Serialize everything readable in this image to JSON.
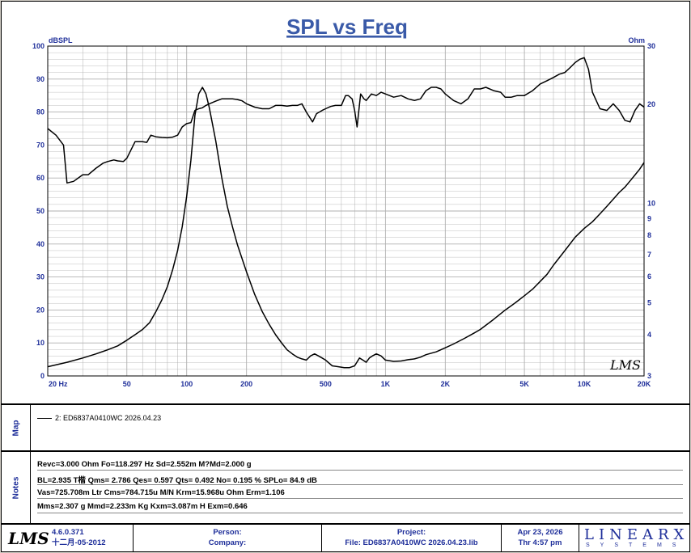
{
  "chart_data": {
    "type": "line",
    "title": "SPL vs Freq",
    "left_axis": {
      "unit": "dBSPL",
      "ylim": [
        0,
        100
      ],
      "ticks": [
        "0",
        "10",
        "20",
        "30",
        "40",
        "50",
        "60",
        "70",
        "80",
        "90",
        "100"
      ]
    },
    "right_axis": {
      "unit": "Ohm",
      "scale": "log",
      "ylim": [
        3,
        30
      ],
      "ticks": [
        "3",
        "4",
        "5",
        "6",
        "7",
        "8",
        "9",
        "10",
        "20",
        "30"
      ]
    },
    "x_axis": {
      "scale": "log",
      "xlim": [
        20,
        20000
      ],
      "ticks": [
        "20 Hz",
        "50",
        "100",
        "200",
        "500",
        "1K",
        "2K",
        "5K",
        "10K",
        "20K"
      ],
      "tick_values": [
        20,
        50,
        100,
        200,
        500,
        1000,
        2000,
        5000,
        10000,
        20000
      ]
    },
    "grid": true,
    "series": [
      {
        "axis": "left",
        "kind": "SPL",
        "x": [
          20,
          22,
          24,
          25,
          27,
          30,
          32,
          35,
          38,
          40,
          43,
          45,
          48,
          50,
          55,
          60,
          63,
          66,
          70,
          75,
          80,
          85,
          90,
          95,
          100,
          105,
          110,
          115,
          120,
          125,
          130,
          140,
          150,
          160,
          170,
          180,
          190,
          200,
          220,
          240,
          260,
          280,
          300,
          320,
          340,
          360,
          380,
          400,
          430,
          450,
          480,
          500,
          530,
          560,
          600,
          630,
          650,
          680,
          700,
          720,
          750,
          780,
          800,
          850,
          900,
          950,
          1000,
          1100,
          1200,
          1300,
          1400,
          1500,
          1600,
          1700,
          1800,
          1900,
          2000,
          2200,
          2400,
          2600,
          2800,
          3000,
          3200,
          3500,
          3800,
          4000,
          4300,
          4600,
          5000,
          5500,
          6000,
          6500,
          7000,
          7500,
          8000,
          8500,
          9000,
          9500,
          10000,
          10500,
          11000,
          12000,
          13000,
          14000,
          15000,
          16000,
          17000,
          18000,
          19000,
          20000
        ],
        "y": [
          75,
          73,
          70,
          58.5,
          59,
          61,
          61,
          63,
          64.5,
          65,
          65.5,
          65.2,
          65,
          66,
          71,
          71,
          70.8,
          73,
          72.5,
          72.3,
          72.2,
          72.4,
          73,
          75.5,
          76.5,
          76.8,
          80.5,
          81,
          81.3,
          82,
          82.5,
          83.3,
          84,
          84,
          84,
          83.8,
          83.4,
          82.5,
          81.5,
          81,
          81,
          82,
          82,
          81.8,
          82,
          82,
          82.5,
          80,
          77,
          79.5,
          80.5,
          81,
          81.7,
          82,
          82,
          85,
          85,
          84,
          80.5,
          75.5,
          85.5,
          84,
          83.5,
          85.5,
          85,
          86,
          85.5,
          84.5,
          85,
          84,
          83.5,
          84,
          86.5,
          87.5,
          87.5,
          87,
          85.5,
          83.5,
          82.5,
          84,
          87,
          87,
          87.5,
          86.5,
          86,
          84.5,
          84.5,
          85,
          85,
          86.5,
          88.5,
          89.5,
          90.5,
          91.5,
          92,
          93.5,
          95,
          96,
          96.5,
          93,
          86,
          81,
          80.5,
          82.5,
          80.5,
          77.5,
          77,
          80.5,
          82.5,
          81.5
        ]
      },
      {
        "axis": "right",
        "kind": "Impedance",
        "x": [
          20,
          25,
          30,
          35,
          40,
          45,
          50,
          55,
          60,
          65,
          70,
          75,
          80,
          85,
          90,
          95,
          100,
          105,
          110,
          115,
          120,
          125,
          130,
          140,
          150,
          160,
          170,
          180,
          190,
          200,
          220,
          240,
          260,
          280,
          300,
          320,
          340,
          360,
          380,
          400,
          420,
          440,
          460,
          480,
          500,
          540,
          580,
          620,
          660,
          700,
          740,
          770,
          800,
          830,
          860,
          900,
          950,
          1000,
          1100,
          1200,
          1300,
          1400,
          1500,
          1600,
          1800,
          2000,
          2200,
          2500,
          2800,
          3000,
          3500,
          4000,
          4500,
          5000,
          5500,
          6000,
          6500,
          7000,
          8000,
          9000,
          10000,
          11000,
          12000,
          13000,
          14000,
          15000,
          16000,
          17000,
          18000,
          19000,
          20000
        ],
        "y": [
          3.2,
          3.3,
          3.4,
          3.5,
          3.6,
          3.7,
          3.85,
          4.0,
          4.15,
          4.35,
          4.7,
          5.1,
          5.6,
          6.3,
          7.2,
          8.5,
          10.5,
          13.5,
          18.5,
          21.5,
          22.5,
          21.5,
          19.5,
          15.5,
          12,
          9.8,
          8.5,
          7.5,
          6.8,
          6.2,
          5.3,
          4.7,
          4.3,
          4.0,
          3.78,
          3.6,
          3.5,
          3.42,
          3.38,
          3.35,
          3.45,
          3.5,
          3.45,
          3.4,
          3.35,
          3.22,
          3.2,
          3.18,
          3.18,
          3.22,
          3.4,
          3.35,
          3.3,
          3.4,
          3.45,
          3.5,
          3.45,
          3.35,
          3.32,
          3.33,
          3.36,
          3.38,
          3.42,
          3.48,
          3.55,
          3.65,
          3.75,
          3.9,
          4.05,
          4.15,
          4.45,
          4.75,
          5.0,
          5.25,
          5.5,
          5.8,
          6.1,
          6.5,
          7.2,
          7.9,
          8.4,
          8.8,
          9.3,
          9.8,
          10.3,
          10.8,
          11.2,
          11.7,
          12.2,
          12.7,
          13.3
        ]
      }
    ]
  },
  "map": {
    "label": "Map",
    "legend_entry": "2: ED6837A0410WC 2026.04.23"
  },
  "notes": {
    "label": "Notes",
    "lines": [
      "Revc=3.000 Ohm  Fo=118.297 Hz  Sd=2.552m M?Md=2.000 g",
      "BL=2.935 T楷  Qms= 2.786  Qes= 0.597  Qts= 0.492  No= 0.195 %  SPLo= 84.9 dB",
      "Vas=725.708m Ltr  Cms=784.715u M/N  Krm=15.968u Ohm  Erm=1.106",
      "Mms=2.307 g  Mmd=2.233m Kg  Kxm=3.087m H  Exm=0.646"
    ]
  },
  "footer": {
    "logo": "LMS",
    "version": "4.6.0.371",
    "date_built": "十二月-05-2012",
    "person_label": "Person:",
    "company_label": "Company:",
    "project_label": "Project:",
    "file_label": "File: ED6837A0410WC 2026.04.23.lib",
    "date": "Apr 23, 2026",
    "time": "Thr  4:57 pm",
    "brand": "LINEARX",
    "brand_sub": "SYSTEMS"
  },
  "colors": {
    "axis_text": "#1f2f9a",
    "title": "#3a5aa8",
    "grid": "#b0b0b0",
    "curve": "#000000",
    "background": "#ffffff"
  }
}
